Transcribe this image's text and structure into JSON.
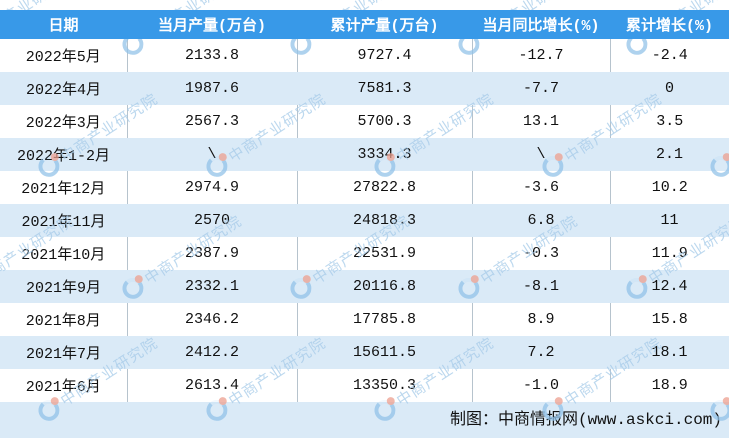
{
  "colors": {
    "header_bg": "#3899e8",
    "header_text": "#ffffff",
    "row_alt_bg": "#daeaf7",
    "footer_bg": "#daeaf7",
    "divider": "#b6c3cd",
    "body_text": "#111111",
    "watermark_blue": "#a6cbe9",
    "watermark_logo_blue": "#93c3e9",
    "watermark_logo_red": "#eda08f"
  },
  "watermark": {
    "text": "中商产业研究院"
  },
  "chart_data": {
    "type": "table",
    "columns": [
      "日期",
      "当月产量(万台)",
      "累计产量(万台)",
      "当月同比增长(%)",
      "累计增长(%)"
    ],
    "rows": [
      [
        "2022年5月",
        "2133.8",
        "9727.4",
        "-12.7",
        "-2.4"
      ],
      [
        "2022年4月",
        "1987.6",
        "7581.3",
        "-7.7",
        "0"
      ],
      [
        "2022年3月",
        "2567.3",
        "5700.3",
        "13.1",
        "3.5"
      ],
      [
        "2022年1-2月",
        "\\",
        "3334.3",
        "\\",
        "2.1"
      ],
      [
        "2021年12月",
        "2974.9",
        "27822.8",
        "-3.6",
        "10.2"
      ],
      [
        "2021年11月",
        "2570",
        "24818.3",
        "6.8",
        "11"
      ],
      [
        "2021年10月",
        "2387.9",
        "22531.9",
        "-0.3",
        "11.9"
      ],
      [
        "2021年9月",
        "2332.1",
        "20116.8",
        "-8.1",
        "12.4"
      ],
      [
        "2021年8月",
        "2346.2",
        "17785.8",
        "8.9",
        "15.8"
      ],
      [
        "2021年7月",
        "2412.2",
        "15611.5",
        "7.2",
        "18.1"
      ],
      [
        "2021年6月",
        "2613.4",
        "13350.3",
        "-1.0",
        "18.9"
      ]
    ]
  },
  "footer": {
    "credit": "制图：中商情报网(www.askci.com)"
  }
}
